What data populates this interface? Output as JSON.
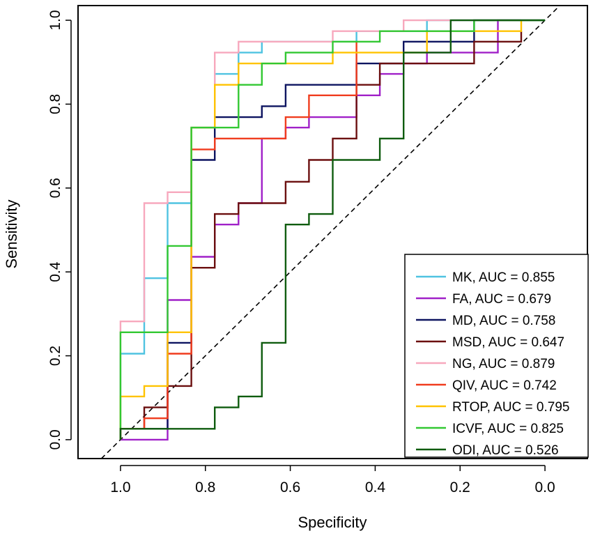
{
  "chart_data": {
    "type": "line",
    "title": "",
    "xlabel": "Specificity",
    "ylabel": "Sensitivity",
    "xlim": [
      1.1,
      -0.1
    ],
    "ylim": [
      -0.045,
      1.035
    ],
    "x_ticks": [
      1.0,
      0.8,
      0.6,
      0.4,
      0.2,
      0.0
    ],
    "x_tick_labels": [
      "1.0",
      "0.8",
      "0.6",
      "0.4",
      "0.2",
      "0.0"
    ],
    "y_ticks": [
      0.0,
      0.2,
      0.4,
      0.6,
      0.8,
      1.0
    ],
    "y_tick_labels": [
      "0.0",
      "0.2",
      "0.4",
      "0.6",
      "0.8",
      "1.0"
    ],
    "x_reversed": true,
    "grid": false,
    "legend_position": "bottom-right",
    "reference_line": {
      "from": [
        1,
        0
      ],
      "to": [
        0,
        1
      ],
      "style": "dashed"
    },
    "series": [
      {
        "name": "MK",
        "label": "MK, AUC = 0.855",
        "auc": 0.855,
        "color": "#4fc3e1",
        "x": [
          1.0,
          1.0,
          0.944,
          0.944,
          0.889,
          0.889,
          0.833,
          0.833,
          0.778,
          0.778,
          0.722,
          0.722,
          0.667,
          0.667,
          0.444,
          0.444,
          0.278,
          0.278,
          0.0
        ],
        "y": [
          0.0,
          0.205,
          0.205,
          0.385,
          0.385,
          0.564,
          0.564,
          0.744,
          0.744,
          0.872,
          0.872,
          0.923,
          0.923,
          0.949,
          0.949,
          0.974,
          0.974,
          1.0,
          1.0
        ]
      },
      {
        "name": "FA",
        "label": "FA, AUC = 0.679",
        "auc": 0.679,
        "color": "#a020c8",
        "x": [
          1.0,
          0.889,
          0.889,
          0.833,
          0.833,
          0.778,
          0.778,
          0.722,
          0.722,
          0.667,
          0.667,
          0.611,
          0.611,
          0.556,
          0.556,
          0.444,
          0.444,
          0.389,
          0.389,
          0.333,
          0.333,
          0.278,
          0.278,
          0.111,
          0.111,
          0.056
        ],
        "y": [
          0.0,
          0.0,
          0.333,
          0.333,
          0.436,
          0.436,
          0.513,
          0.513,
          0.564,
          0.564,
          0.718,
          0.718,
          0.744,
          0.744,
          0.769,
          0.769,
          0.821,
          0.821,
          0.872,
          0.872,
          0.897,
          0.897,
          0.923,
          0.923,
          1.0,
          1.0
        ]
      },
      {
        "name": "MD",
        "label": "MD, AUC = 0.758",
        "auc": 0.758,
        "color": "#0d1460",
        "x": [
          1.0,
          1.0,
          0.889,
          0.889,
          0.833,
          0.833,
          0.778,
          0.778,
          0.667,
          0.667,
          0.611,
          0.611,
          0.444,
          0.444,
          0.333,
          0.333,
          0.167,
          0.167,
          0.0
        ],
        "y": [
          0.0,
          0.026,
          0.026,
          0.231,
          0.231,
          0.667,
          0.667,
          0.769,
          0.769,
          0.795,
          0.795,
          0.846,
          0.846,
          0.897,
          0.897,
          0.949,
          0.949,
          1.0,
          1.0
        ]
      },
      {
        "name": "MSD",
        "label": "MSD, AUC = 0.647",
        "auc": 0.647,
        "color": "#6b0f0f",
        "x": [
          1.0,
          1.0,
          0.944,
          0.944,
          0.889,
          0.889,
          0.833,
          0.833,
          0.778,
          0.778,
          0.722,
          0.722,
          0.611,
          0.611,
          0.556,
          0.556,
          0.5,
          0.5,
          0.444,
          0.444,
          0.389,
          0.389,
          0.167,
          0.167,
          0.056,
          0.056
        ],
        "y": [
          0.0,
          0.026,
          0.026,
          0.077,
          0.077,
          0.128,
          0.128,
          0.41,
          0.41,
          0.538,
          0.538,
          0.564,
          0.564,
          0.615,
          0.615,
          0.667,
          0.667,
          0.718,
          0.718,
          0.846,
          0.846,
          0.897,
          0.897,
          0.949,
          0.949,
          0.974
        ]
      },
      {
        "name": "NG",
        "label": "NG, AUC = 0.879",
        "auc": 0.879,
        "color": "#f7a8bd",
        "x": [
          1.0,
          1.0,
          0.944,
          0.944,
          0.889,
          0.889,
          0.833,
          0.833,
          0.778,
          0.778,
          0.722,
          0.722,
          0.5,
          0.5,
          0.333,
          0.333,
          0.0
        ],
        "y": [
          0.0,
          0.282,
          0.282,
          0.564,
          0.564,
          0.59,
          0.59,
          0.744,
          0.744,
          0.923,
          0.923,
          0.949,
          0.949,
          0.974,
          0.974,
          1.0,
          1.0
        ]
      },
      {
        "name": "QIV",
        "label": "QIV, AUC = 0.742",
        "auc": 0.742,
        "color": "#f03c1e",
        "x": [
          1.0,
          1.0,
          0.944,
          0.944,
          0.889,
          0.889,
          0.833,
          0.833,
          0.778,
          0.778,
          0.611,
          0.611,
          0.556,
          0.556,
          0.444,
          0.444
        ],
        "y": [
          0.0,
          0.026,
          0.026,
          0.051,
          0.051,
          0.205,
          0.205,
          0.692,
          0.692,
          0.718,
          0.718,
          0.769,
          0.769,
          0.821,
          0.821,
          0.949
        ]
      },
      {
        "name": "RTOP",
        "label": "RTOP, AUC = 0.795",
        "auc": 0.795,
        "color": "#ffc300",
        "x": [
          1.0,
          1.0,
          0.944,
          0.944,
          0.889,
          0.889,
          0.833,
          0.833,
          0.778,
          0.778,
          0.722,
          0.722,
          0.5,
          0.5,
          0.278,
          0.278,
          0.056,
          0.056
        ],
        "y": [
          0.0,
          0.103,
          0.103,
          0.128,
          0.128,
          0.256,
          0.256,
          0.744,
          0.744,
          0.846,
          0.846,
          0.897,
          0.897,
          0.923,
          0.923,
          0.974,
          0.974,
          1.0
        ]
      },
      {
        "name": "ICVF",
        "label": "ICVF, AUC = 0.825",
        "auc": 0.825,
        "color": "#32c832",
        "x": [
          1.0,
          1.0,
          0.889,
          0.889,
          0.833,
          0.833,
          0.722,
          0.722,
          0.667,
          0.667,
          0.611,
          0.611,
          0.5,
          0.5,
          0.389,
          0.389,
          0.167,
          0.167,
          0.0
        ],
        "y": [
          0.0,
          0.256,
          0.256,
          0.462,
          0.462,
          0.744,
          0.744,
          0.846,
          0.846,
          0.897,
          0.897,
          0.923,
          0.923,
          0.949,
          0.949,
          0.974,
          0.974,
          1.0,
          1.0
        ]
      },
      {
        "name": "ODI",
        "label": "ODI, AUC = 0.526",
        "auc": 0.526,
        "color": "#0f5c0f",
        "x": [
          1.0,
          1.0,
          0.778,
          0.778,
          0.722,
          0.722,
          0.667,
          0.667,
          0.611,
          0.611,
          0.556,
          0.556,
          0.5,
          0.5,
          0.389,
          0.389,
          0.333,
          0.333,
          0.222,
          0.222,
          0.0
        ],
        "y": [
          0.0,
          0.026,
          0.026,
          0.077,
          0.077,
          0.103,
          0.103,
          0.231,
          0.231,
          0.513,
          0.513,
          0.538,
          0.538,
          0.667,
          0.667,
          0.718,
          0.718,
          0.923,
          0.923,
          1.0,
          1.0
        ]
      }
    ]
  }
}
